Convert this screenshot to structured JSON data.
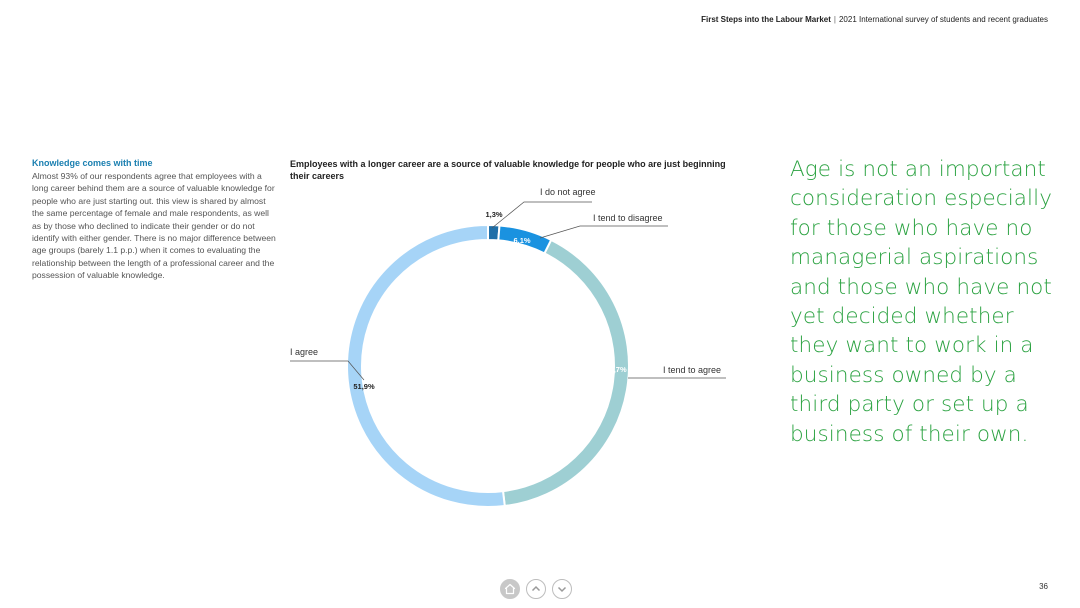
{
  "header": {
    "report_title": "First Steps into the Labour Market",
    "separator": "|",
    "report_subtitle": "2021 International survey of students and recent graduates"
  },
  "side": {
    "title": "Knowledge comes with time",
    "body": "Almost 93% of our respondents agree that employees with a long career behind them are a source of valuable knowledge for people who are just starting out. this view is shared by almost the same percentage of female and male respondents, as well as by those who declined to indicate their gender or do not identify with either gender. There is no major difference between age groups (barely 1.1 p.p.) when it comes to evaluating the relationship between the length of a professional career and the possession of valuable knowledge."
  },
  "quote": "Age is not an important consideration especially for those who have no managerial aspirations and those who have not yet decided whether they want to work in a business owned by a third party or set up a business of their own.",
  "chart_data": {
    "type": "pie",
    "title": "Employees with a longer career are a source of valuable knowledge for people who are just beginning their careers",
    "slices": [
      {
        "label": "I do not agree",
        "value": 1.3,
        "value_label": "1,3%",
        "color": "#1f6fa8"
      },
      {
        "label": "I tend to disagree",
        "value": 6.1,
        "value_label": "6,1%",
        "color": "#1a92e0"
      },
      {
        "label": "I tend to agree",
        "value": 40.7,
        "value_label": "40,7%",
        "color": "#9ecfd3"
      },
      {
        "label": "I agree",
        "value": 51.9,
        "value_label": "51,9%",
        "color": "#a6d4f7"
      }
    ]
  },
  "colors": {
    "quote": "#2ba241",
    "side_title": "#1a7fb0",
    "nav": "#bdbdbd"
  },
  "nav": {
    "home_icon": "home-icon",
    "up_icon": "chevron-up-icon",
    "down_icon": "chevron-down-icon"
  },
  "page_number": "36"
}
